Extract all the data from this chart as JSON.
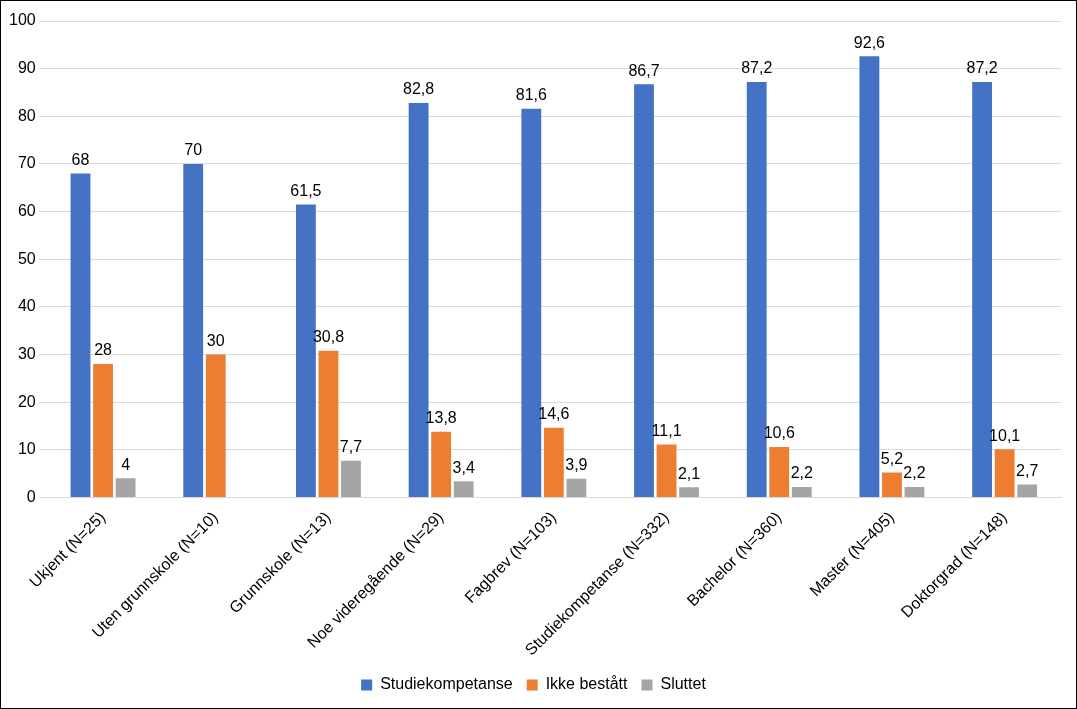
{
  "chart_data": {
    "type": "bar",
    "categories": [
      "Ukjent (N=25)",
      "Uten grunnskole (N=10)",
      "Grunnskole (N=13)",
      "Noe videregående (N=29)",
      "Fagbrev (N=103)",
      "Studiekompetanse (N=332)",
      "Bachelor (N=360)",
      "Master (N=405)",
      "Doktorgrad (N=148)"
    ],
    "series": [
      {
        "name": "Studiekompetanse",
        "color": "#4472c4",
        "values": [
          68,
          70,
          61.5,
          82.8,
          81.6,
          86.7,
          87.2,
          92.6,
          87.2
        ],
        "value_labels": [
          "68",
          "70",
          "61,5",
          "82,8",
          "81,6",
          "86,7",
          "87,2",
          "92,6",
          "87,2"
        ]
      },
      {
        "name": "Ikke bestått",
        "color": "#ed7d31",
        "values": [
          28,
          30,
          30.8,
          13.8,
          14.6,
          11.1,
          10.6,
          5.2,
          10.1
        ],
        "value_labels": [
          "28",
          "30",
          "30,8",
          "13,8",
          "14,6",
          "11,1",
          "10,6",
          "5,2",
          "10,1"
        ]
      },
      {
        "name": "Sluttet",
        "color": "#a5a5a5",
        "values": [
          4,
          null,
          7.7,
          3.4,
          3.9,
          2.1,
          2.2,
          2.2,
          2.7
        ],
        "value_labels": [
          "4",
          null,
          "7,7",
          "3,4",
          "3,9",
          "2,1",
          "2,2",
          "2,2",
          "2,7"
        ]
      }
    ],
    "ylim": [
      0,
      100
    ],
    "yticks": [
      0,
      10,
      20,
      30,
      40,
      50,
      60,
      70,
      80,
      90,
      100
    ],
    "grid": "y",
    "legend": "bottom"
  }
}
